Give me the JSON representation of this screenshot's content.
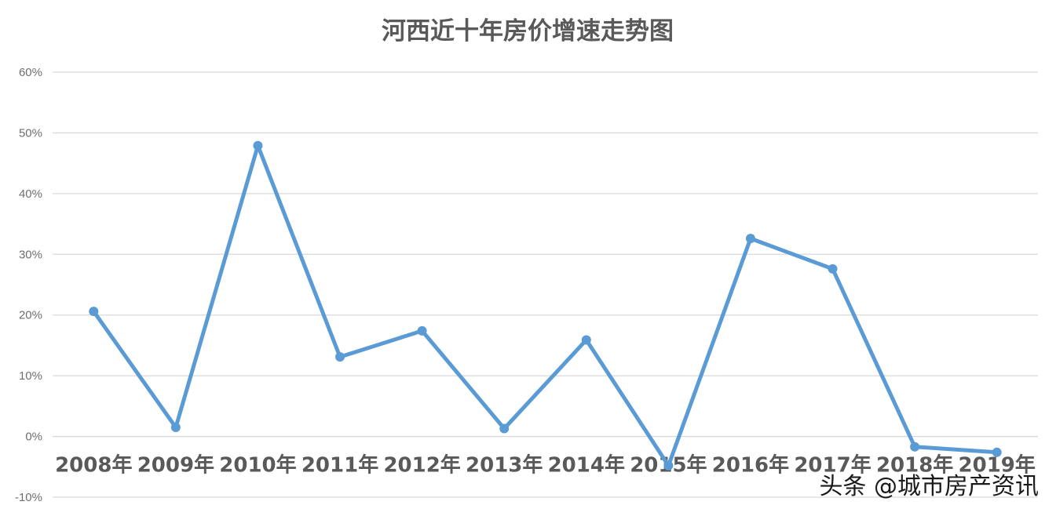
{
  "chart_data": {
    "type": "line",
    "title": "河西近十年房价增速走势图",
    "xlabel": "",
    "ylabel": "",
    "categories": [
      "2008年",
      "2009年",
      "2010年",
      "2011年",
      "2012年",
      "2013年",
      "2014年",
      "2015年",
      "2016年",
      "2017年",
      "2018年",
      "2019年"
    ],
    "series": [
      {
        "values": [
          20.6,
          1.5,
          47.9,
          13.1,
          17.4,
          1.3,
          15.9,
          -4.8,
          32.6,
          27.6,
          -1.7,
          -2.6
        ],
        "color": "#5b9bd5"
      }
    ],
    "ylim": [
      -10,
      60
    ],
    "y_ticks": [
      60,
      50,
      40,
      30,
      20,
      10,
      0,
      -10
    ],
    "y_tick_labels": [
      "60%",
      "50%",
      "40%",
      "30%",
      "20%",
      "10%",
      "0%",
      "-10%"
    ],
    "grid": true,
    "legend": "none"
  },
  "watermark": {
    "text": "头条 @城市房产资讯"
  },
  "colors": {
    "series": "#5b9bd5",
    "grid": "#d9d9d9",
    "title": "#595959",
    "tick": "#6e6e6e",
    "background": "#ffffff"
  }
}
